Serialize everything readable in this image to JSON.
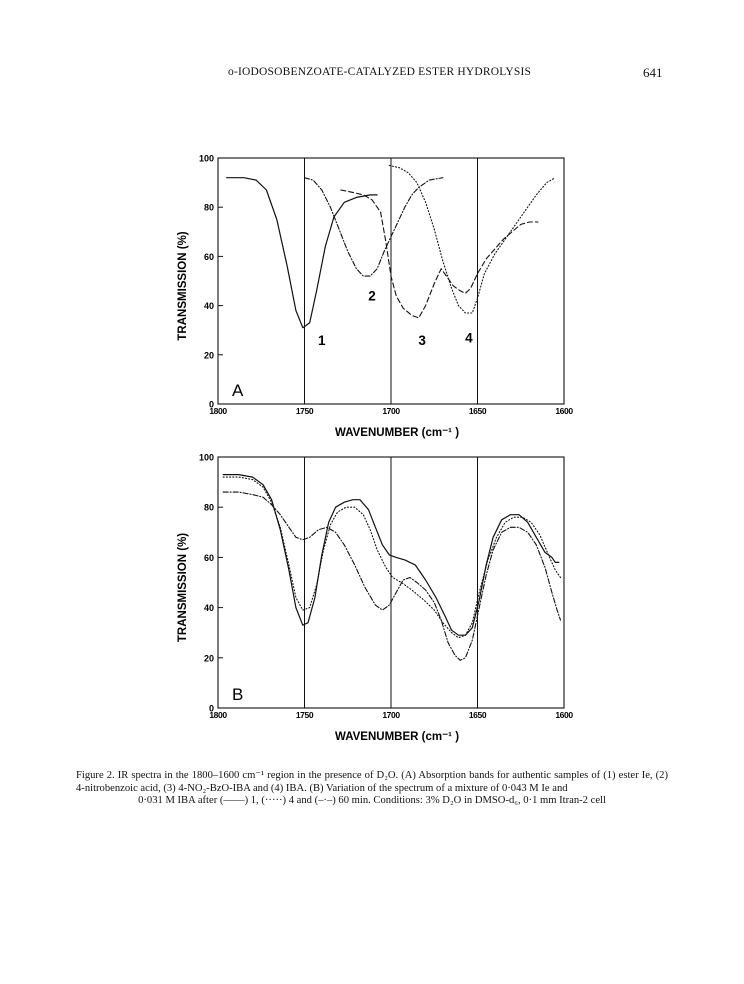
{
  "header": {
    "title": "o-IODOSOBENZOATE-CATALYZED ESTER HYDROLYSIS",
    "page_number": "641"
  },
  "caption": {
    "line1": "Figure 2.  IR spectra in the 1800–1600 cm⁻¹ region in the presence of D₂O. (A) Absorption bands for authentic samples of (1) ester",
    "line2": "Ie, (2) 4-nitrobenzoic acid, (3) 4-NO₂-BzO-IBA and (4) IBA. (B) Variation of the spectrum of a mixture of 0·043 M Ie and",
    "line3": "0·031 M IBA after (——) 1, (·····) 4 and (–·–) 60 min. Conditions: 3% D₂O in DMSO-d₆, 0·1 mm Itran-2 cell"
  },
  "chart_data": [
    {
      "type": "line",
      "panel_label": "A",
      "xlabel": "WAVENUMBER (cm⁻¹ )",
      "ylabel": "TRANSMISSION (%)",
      "xlim": [
        1800,
        1600
      ],
      "ylim": [
        0,
        100
      ],
      "x_ticks": [
        "1800",
        "1750",
        "1700",
        "1650",
        "1600"
      ],
      "y_ticks": [
        "0",
        "20",
        "40",
        "60",
        "80",
        "100"
      ],
      "vertical_lines": [
        1750,
        1700,
        1650
      ],
      "series": [
        {
          "name": "1",
          "style": "solid",
          "label_at": [
            1740,
            24
          ],
          "points": [
            [
              1795,
              92
            ],
            [
              1785,
              92
            ],
            [
              1778,
              91
            ],
            [
              1772,
              87
            ],
            [
              1766,
              75
            ],
            [
              1760,
              56
            ],
            [
              1755,
              38
            ],
            [
              1751,
              31
            ],
            [
              1747,
              33
            ],
            [
              1743,
              46
            ],
            [
              1738,
              64
            ],
            [
              1733,
              76
            ],
            [
              1727,
              82
            ],
            [
              1720,
              84
            ],
            [
              1712,
              85
            ],
            [
              1708,
              85
            ]
          ]
        },
        {
          "name": "2",
          "style": "dashdot",
          "label_at": [
            1711,
            42
          ],
          "points": [
            [
              1750,
              92
            ],
            [
              1745,
              91
            ],
            [
              1740,
              87
            ],
            [
              1735,
              80
            ],
            [
              1730,
              71
            ],
            [
              1725,
              62
            ],
            [
              1720,
              55
            ],
            [
              1716,
              52
            ],
            [
              1712,
              52
            ],
            [
              1708,
              55
            ],
            [
              1704,
              62
            ],
            [
              1700,
              68
            ],
            [
              1696,
              74
            ],
            [
              1692,
              80
            ],
            [
              1688,
              85
            ],
            [
              1684,
              88
            ],
            [
              1678,
              91
            ],
            [
              1670,
              92
            ]
          ]
        },
        {
          "name": "3",
          "style": "dashed",
          "label_at": [
            1682,
            24
          ],
          "points": [
            [
              1729,
              87
            ],
            [
              1722,
              86
            ],
            [
              1716,
              85
            ],
            [
              1711,
              83
            ],
            [
              1706,
              78
            ],
            [
              1703,
              66
            ],
            [
              1700,
              52
            ],
            [
              1697,
              44
            ],
            [
              1693,
              39
            ],
            [
              1688,
              36
            ],
            [
              1684,
              35
            ],
            [
              1680,
              40
            ],
            [
              1675,
              49
            ],
            [
              1671,
              55
            ],
            [
              1668,
              52
            ],
            [
              1664,
              48
            ],
            [
              1660,
              46
            ],
            [
              1657,
              45
            ],
            [
              1654,
              47
            ],
            [
              1650,
              53
            ],
            [
              1645,
              59
            ],
            [
              1640,
              63
            ],
            [
              1635,
              67
            ],
            [
              1630,
              70
            ],
            [
              1625,
              73
            ],
            [
              1620,
              74
            ],
            [
              1615,
              74
            ]
          ]
        },
        {
          "name": "4",
          "style": "dotted",
          "label_at": [
            1655,
            25
          ],
          "points": [
            [
              1701,
              97
            ],
            [
              1695,
              96
            ],
            [
              1690,
              94
            ],
            [
              1685,
              90
            ],
            [
              1680,
              82
            ],
            [
              1675,
              71
            ],
            [
              1670,
              58
            ],
            [
              1665,
              47
            ],
            [
              1661,
              40
            ],
            [
              1657,
              37
            ],
            [
              1653,
              37
            ],
            [
              1650,
              43
            ],
            [
              1646,
              53
            ],
            [
              1640,
              61
            ],
            [
              1634,
              67
            ],
            [
              1628,
              73
            ],
            [
              1622,
              79
            ],
            [
              1616,
              85
            ],
            [
              1610,
              90
            ],
            [
              1605,
              92
            ]
          ]
        }
      ]
    },
    {
      "type": "line",
      "panel_label": "B",
      "xlabel": "WAVENUMBER (cm⁻¹ )",
      "ylabel": "TRANSMISSION (%)",
      "xlim": [
        1800,
        1600
      ],
      "ylim": [
        0,
        100
      ],
      "x_ticks": [
        "1800",
        "1750",
        "1700",
        "1650",
        "1600"
      ],
      "y_ticks": [
        "0",
        "20",
        "40",
        "60",
        "80",
        "100"
      ],
      "vertical_lines": [
        1750,
        1700,
        1650
      ],
      "series": [
        {
          "name": "1 min",
          "style": "solid",
          "points": [
            [
              1797,
              93
            ],
            [
              1788,
              93
            ],
            [
              1780,
              92
            ],
            [
              1774,
              89
            ],
            [
              1769,
              83
            ],
            [
              1764,
              71
            ],
            [
              1759,
              55
            ],
            [
              1755,
              40
            ],
            [
              1751,
              33
            ],
            [
              1748,
              34
            ],
            [
              1744,
              44
            ],
            [
              1740,
              61
            ],
            [
              1736,
              74
            ],
            [
              1732,
              80
            ],
            [
              1727,
              82
            ],
            [
              1722,
              83
            ],
            [
              1718,
              83
            ],
            [
              1713,
              79
            ],
            [
              1709,
              72
            ],
            [
              1705,
              65
            ],
            [
              1701,
              61
            ],
            [
              1697,
              60
            ],
            [
              1692,
              59
            ],
            [
              1686,
              57
            ],
            [
              1680,
              51
            ],
            [
              1674,
              44
            ],
            [
              1669,
              37
            ],
            [
              1665,
              31
            ],
            [
              1661,
              29
            ],
            [
              1657,
              29
            ],
            [
              1653,
              32
            ],
            [
              1649,
              43
            ],
            [
              1645,
              57
            ],
            [
              1641,
              68
            ],
            [
              1636,
              75
            ],
            [
              1631,
              77
            ],
            [
              1626,
              77
            ],
            [
              1621,
              74
            ],
            [
              1616,
              68
            ],
            [
              1611,
              62
            ],
            [
              1607,
              60
            ],
            [
              1605,
              58
            ],
            [
              1603,
              58
            ]
          ]
        },
        {
          "name": "4 min",
          "style": "dotted",
          "points": [
            [
              1797,
              92
            ],
            [
              1788,
              92
            ],
            [
              1780,
              91
            ],
            [
              1774,
              88
            ],
            [
              1769,
              82
            ],
            [
              1764,
              72
            ],
            [
              1759,
              57
            ],
            [
              1755,
              44
            ],
            [
              1751,
              39
            ],
            [
              1747,
              40
            ],
            [
              1743,
              49
            ],
            [
              1739,
              63
            ],
            [
              1735,
              73
            ],
            [
              1731,
              78
            ],
            [
              1726,
              80
            ],
            [
              1721,
              80
            ],
            [
              1716,
              77
            ],
            [
              1712,
              71
            ],
            [
              1708,
              63
            ],
            [
              1703,
              56
            ],
            [
              1699,
              52
            ],
            [
              1694,
              50
            ],
            [
              1688,
              47
            ],
            [
              1681,
              43
            ],
            [
              1675,
              39
            ],
            [
              1670,
              34
            ],
            [
              1665,
              30
            ],
            [
              1661,
              28
            ],
            [
              1657,
              29
            ],
            [
              1653,
              34
            ],
            [
              1649,
              46
            ],
            [
              1644,
              59
            ],
            [
              1639,
              68
            ],
            [
              1634,
              74
            ],
            [
              1629,
              76
            ],
            [
              1624,
              76
            ],
            [
              1619,
              74
            ],
            [
              1614,
              69
            ],
            [
              1609,
              61
            ],
            [
              1605,
              55
            ],
            [
              1602,
              52
            ]
          ]
        },
        {
          "name": "60 min",
          "style": "dashdot",
          "points": [
            [
              1797,
              86
            ],
            [
              1788,
              86
            ],
            [
              1780,
              85
            ],
            [
              1774,
              84
            ],
            [
              1769,
              81
            ],
            [
              1764,
              77
            ],
            [
              1759,
              72
            ],
            [
              1755,
              68
            ],
            [
              1751,
              67
            ],
            [
              1747,
              68
            ],
            [
              1742,
              71
            ],
            [
              1737,
              72
            ],
            [
              1732,
              70
            ],
            [
              1727,
              65
            ],
            [
              1721,
              57
            ],
            [
              1715,
              48
            ],
            [
              1709,
              41
            ],
            [
              1705,
              39
            ],
            [
              1701,
              41
            ],
            [
              1697,
              46
            ],
            [
              1693,
              51
            ],
            [
              1689,
              52
            ],
            [
              1685,
              50
            ],
            [
              1680,
              47
            ],
            [
              1675,
              42
            ],
            [
              1671,
              35
            ],
            [
              1667,
              26
            ],
            [
              1663,
              21
            ],
            [
              1660,
              19
            ],
            [
              1657,
              20
            ],
            [
              1653,
              27
            ],
            [
              1649,
              40
            ],
            [
              1645,
              53
            ],
            [
              1641,
              63
            ],
            [
              1636,
              70
            ],
            [
              1631,
              72
            ],
            [
              1626,
              72
            ],
            [
              1621,
              70
            ],
            [
              1616,
              65
            ],
            [
              1611,
              56
            ],
            [
              1607,
              46
            ],
            [
              1604,
              39
            ],
            [
              1602,
              35
            ]
          ]
        }
      ]
    }
  ]
}
